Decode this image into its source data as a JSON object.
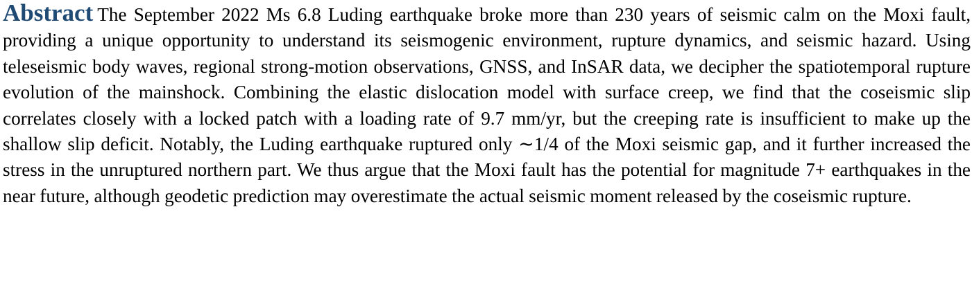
{
  "abstract": {
    "heading": "Abstract",
    "heading_color": "#1e4a74",
    "body": "The September 2022 Ms 6.8 Luding earthquake broke more than 230 years of seismic calm on the Moxi fault, providing a unique opportunity to understand its seismogenic environment, rupture dynamics, and seismic hazard. Using teleseismic body waves, regional strong-motion observations, GNSS, and InSAR data, we decipher the spatiotemporal rupture evolution of the mainshock. Combining the elastic dislocation model with surface creep, we find that the coseismic slip correlates closely with a locked patch with a loading rate of 9.7 mm/yr, but the creeping rate is insufficient to make up the shallow slip deficit. Notably, the Luding earthquake ruptured only ∼1/4 of the Moxi seismic gap, and it further increased the stress in the unruptured northern part. We thus argue that the Moxi fault has the potential for magnitude 7+ earthquakes in the near future, although geodetic prediction may overestimate the actual seismic moment released by the coseismic rupture."
  }
}
